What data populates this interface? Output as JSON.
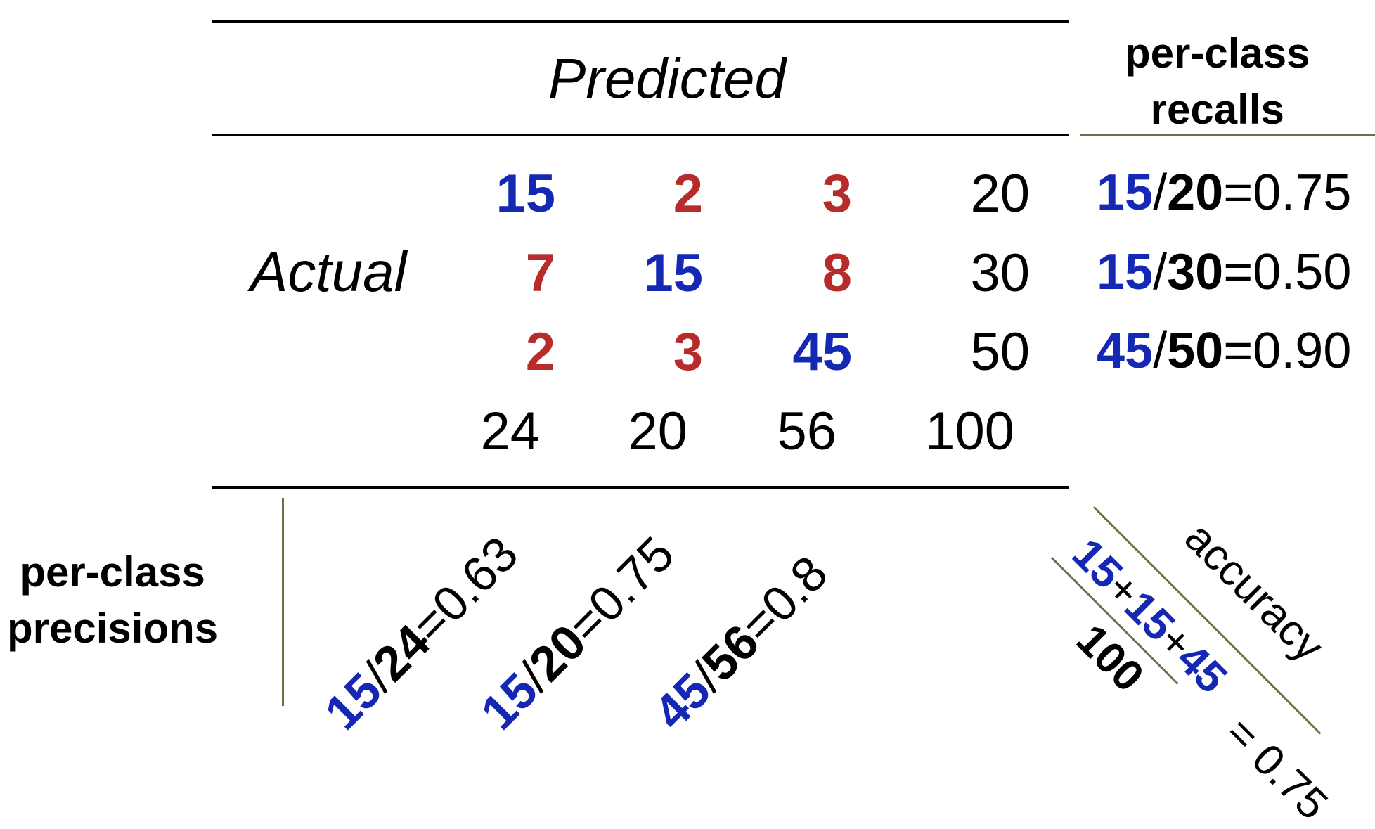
{
  "header": {
    "predicted_label": "Predicted",
    "actual_label": "Actual",
    "recalls_title": [
      "per-class",
      "recalls"
    ],
    "precisions_title": [
      "per-class",
      "precisions"
    ]
  },
  "matrix": {
    "rows": [
      [
        {
          "v": "15",
          "c": "blue"
        },
        {
          "v": "2",
          "c": "red"
        },
        {
          "v": "3",
          "c": "red"
        }
      ],
      [
        {
          "v": "7",
          "c": "red"
        },
        {
          "v": "15",
          "c": "blue"
        },
        {
          "v": "8",
          "c": "red"
        }
      ],
      [
        {
          "v": "2",
          "c": "red"
        },
        {
          "v": "3",
          "c": "red"
        },
        {
          "v": "45",
          "c": "blue"
        }
      ]
    ],
    "row_totals": [
      "20",
      "30",
      "50"
    ],
    "column_totals": [
      "24",
      "20",
      "56"
    ],
    "grand_total": "100"
  },
  "recalls": [
    {
      "num": "15",
      "den": "20",
      "val": "=0.75"
    },
    {
      "num": "15",
      "den": "30",
      "val": "=0.50"
    },
    {
      "num": "45",
      "den": "50",
      "val": "=0.90"
    }
  ],
  "precisions": [
    {
      "num": "15",
      "den": "24",
      "val": "=0.63"
    },
    {
      "num": "15",
      "den": "20",
      "val": "=0.75"
    },
    {
      "num": "45",
      "den": "56",
      "val": "=0.8"
    }
  ],
  "accuracy": {
    "label": "accuracy",
    "numerator": [
      {
        "v": "15",
        "c": "blue"
      },
      {
        "v": "+",
        "c": "blk"
      },
      {
        "v": "15",
        "c": "blue"
      },
      {
        "v": "+",
        "c": "blk"
      },
      {
        "v": "45",
        "c": "blue"
      }
    ],
    "denominator": "100",
    "result": "= 0.75"
  },
  "colors": {
    "diagonal": "#1428b4",
    "off_diagonal": "#b82b2b",
    "text": "#000000",
    "rule": "#000000",
    "divider": "#6e6e4a"
  }
}
